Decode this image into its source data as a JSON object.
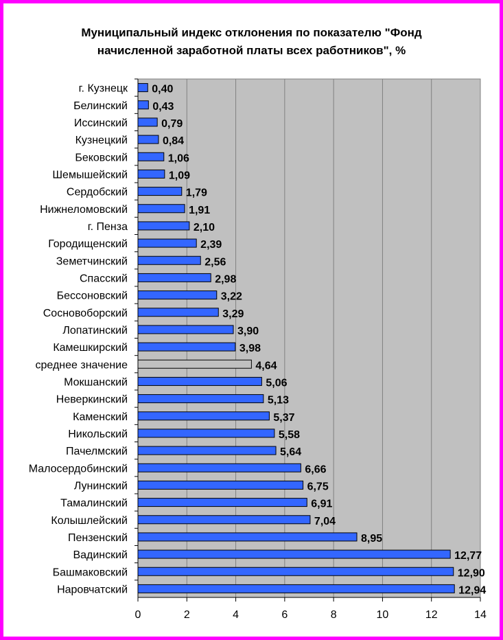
{
  "chart_data": {
    "type": "bar",
    "orientation": "horizontal",
    "title_lines": [
      "Муниципальный индекс отклонения по показателю \"Фонд",
      "начисленной заработной платы всех работников\", %"
    ],
    "categories": [
      "г. Кузнецк",
      "Белинский",
      "Иссинский",
      "Кузнецкий",
      "Бековский",
      "Шемышейский",
      "Сердобский",
      "Нижнеломовский",
      "г. Пенза",
      "Городищенский",
      "Земетчинский",
      "Спасский",
      "Бессоновский",
      "Сосновоборский",
      "Лопатинский",
      "Камешкирский",
      "среднее значение",
      "Мокшанский",
      "Неверкинский",
      "Каменский",
      "Никольский",
      "Пачелмский",
      "Малосердобинский",
      "Лунинский",
      "Тамалинский",
      "Колышлейский",
      "Пензенский",
      "Вадинский",
      "Башмаковский",
      "Наровчатский"
    ],
    "values": [
      0.4,
      0.43,
      0.79,
      0.84,
      1.06,
      1.09,
      1.79,
      1.91,
      2.1,
      2.39,
      2.56,
      2.98,
      3.22,
      3.29,
      3.9,
      3.98,
      4.64,
      5.06,
      5.13,
      5.37,
      5.58,
      5.64,
      6.66,
      6.75,
      6.91,
      7.04,
      8.95,
      12.77,
      12.9,
      12.94
    ],
    "value_labels": [
      "0,40",
      "0,43",
      "0,79",
      "0,84",
      "1,06",
      "1,09",
      "1,79",
      "1,91",
      "2,10",
      "2,39",
      "2,56",
      "2,98",
      "3,22",
      "3,29",
      "3,90",
      "3,98",
      "4,64",
      "5,06",
      "5,13",
      "5,37",
      "5,58",
      "5,64",
      "6,66",
      "6,75",
      "6,91",
      "7,04",
      "8,95",
      "12,77",
      "12,90",
      "12,94"
    ],
    "highlight_category": "среднее значение",
    "xlim": [
      0,
      14
    ],
    "xticks": [
      0,
      2,
      4,
      6,
      8,
      10,
      12,
      14
    ],
    "grid": "vertical",
    "legend": "none",
    "colors": {
      "bar": "#3366ff",
      "highlight_bar": "#c0c0c0",
      "plot_background": "#c0c0c0",
      "border": "#ff00ff",
      "gridline": "#808080"
    }
  }
}
